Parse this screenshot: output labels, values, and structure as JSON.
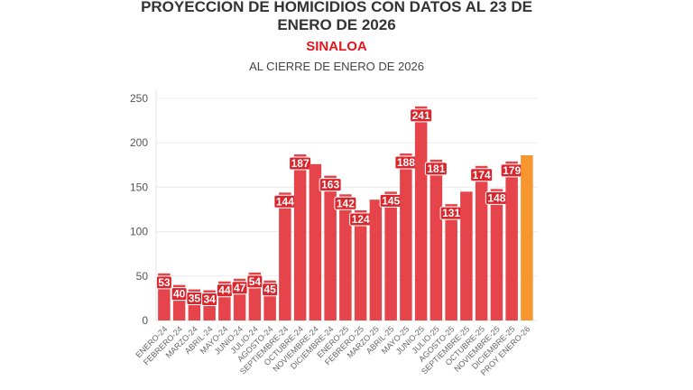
{
  "chart_data": {
    "type": "bar",
    "title_line1": "PROYECCION DE HOMICIDIOS CON DATOS AL 23 DE",
    "title_line2": "ENERO DE 2026",
    "subtitle": "SINALOA",
    "subtitle2": "AL CIERRE DE ENERO DE 2026",
    "xlabel": "",
    "ylabel": "",
    "ylim": [
      0,
      250
    ],
    "yticks": [
      0,
      50,
      100,
      150,
      200,
      250
    ],
    "grid": true,
    "categories": [
      "ENERO-24",
      "FEBRERO-24",
      "MARZO-24",
      "ABRIL-24",
      "MAYO-24",
      "JUNIO-24",
      "JULIO-24",
      "AGOSTO-24",
      "SEPTIEMBRE-24",
      "OCTUBRE-24",
      "NOVIEMBRE-24",
      "DICIEMBRE-24",
      "ENERO-25",
      "FEBRERO-25",
      "MARZO-25",
      "ABRIL-25",
      "MAYO-25",
      "JUNIO-25",
      "JULIO-25",
      "AGOSTO-25",
      "SEPTIEMBRE-25",
      "OCTUBRE-25",
      "NOVIEMBRE-25",
      "DICIEMBRE-25",
      "PROY ENERO-26"
    ],
    "values": [
      53,
      40,
      35,
      34,
      44,
      47,
      54,
      45,
      144,
      187,
      176,
      163,
      142,
      124,
      136,
      145,
      188,
      241,
      181,
      131,
      145,
      174,
      148,
      179,
      186
    ],
    "data_labels": [
      "53",
      "40",
      "35",
      "34",
      "44",
      "47",
      "54",
      "45",
      "144",
      "187",
      "",
      "163",
      "142",
      "124",
      "",
      "145",
      "188",
      "241",
      "181",
      "131",
      "",
      "174",
      "148",
      "179",
      ""
    ],
    "colors": {
      "actual": "#e5454a",
      "projection": "#f7962f",
      "label_bg": "#d8262c"
    }
  }
}
